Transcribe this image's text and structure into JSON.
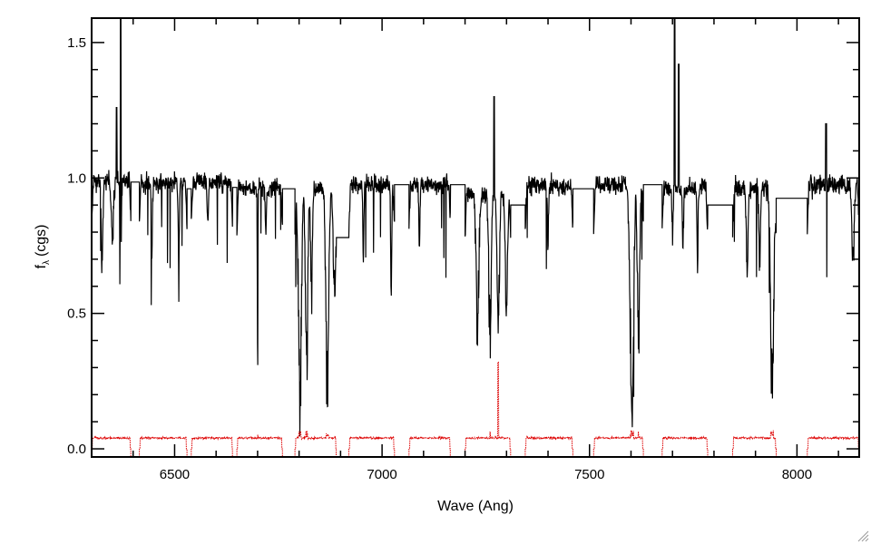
{
  "chart_data": {
    "type": "line",
    "xlabel": "Wave (Ang)",
    "ylabel_main": "f",
    "ylabel_sub": "λ",
    "ylabel_unit": "(cgs)",
    "xlim": [
      6300,
      8150
    ],
    "ylim": [
      -0.03,
      1.59
    ],
    "x_ticks": [
      6500,
      7000,
      7500,
      8000
    ],
    "y_ticks": [
      0.0,
      0.5,
      1.0,
      1.5
    ],
    "x_tick_labels": [
      "6500",
      "7000",
      "7500",
      "8000"
    ],
    "y_tick_labels": [
      "0.0",
      "0.5",
      "1.0",
      "1.5"
    ],
    "grid": false,
    "colors": {
      "flux": "#000000",
      "error": "#dd0000",
      "axes": "#000000"
    },
    "orders": [
      {
        "start": 6300,
        "end": 6395,
        "level": 0.99
      },
      {
        "start": 6415,
        "end": 6530,
        "level": 0.98
      },
      {
        "start": 6540,
        "end": 6640,
        "level": 0.985
      },
      {
        "start": 6650,
        "end": 6760,
        "level": 0.965
      },
      {
        "start": 6790,
        "end": 6890,
        "level": 0.96
      },
      {
        "start": 6920,
        "end": 7030,
        "level": 0.975
      },
      {
        "start": 7065,
        "end": 7165,
        "level": 0.975
      },
      {
        "start": 7200,
        "end": 7310,
        "level": 0.945
      },
      {
        "start": 7345,
        "end": 7460,
        "level": 0.97
      },
      {
        "start": 7510,
        "end": 7630,
        "level": 0.975
      },
      {
        "start": 7675,
        "end": 7785,
        "level": 0.965
      },
      {
        "start": 7845,
        "end": 7950,
        "level": 0.96
      },
      {
        "start": 8025,
        "end": 8150,
        "level": 0.975
      }
    ],
    "gap_levels": [
      0.985,
      0.96,
      0.965,
      0.96,
      0.78,
      0.975,
      0.975,
      0.9,
      0.96,
      0.975,
      0.9,
      0.925,
      0.565
    ],
    "absorption_features": [
      {
        "x": 6325,
        "depth": 0.35,
        "width": 3
      },
      {
        "x": 6350,
        "depth": 0.25,
        "width": 4
      },
      {
        "x": 6370,
        "depth": 0.4,
        "width": 2
      },
      {
        "x": 6445,
        "depth": 0.3,
        "width": 2
      },
      {
        "x": 6510,
        "depth": 0.3,
        "width": 2
      },
      {
        "x": 6580,
        "depth": 0.25,
        "width": 2
      },
      {
        "x": 6700,
        "depth": 0.95,
        "width": 1
      },
      {
        "x": 6720,
        "depth": 0.2,
        "width": 2
      },
      {
        "x": 6802,
        "depth": 0.95,
        "width": 5
      },
      {
        "x": 6818,
        "depth": 0.85,
        "width": 4
      },
      {
        "x": 6830,
        "depth": 0.5,
        "width": 3
      },
      {
        "x": 6868,
        "depth": 0.85,
        "width": 5
      },
      {
        "x": 6885,
        "depth": 0.45,
        "width": 4
      },
      {
        "x": 6955,
        "depth": 0.3,
        "width": 2
      },
      {
        "x": 7022,
        "depth": 0.45,
        "width": 2
      },
      {
        "x": 7090,
        "depth": 0.3,
        "width": 2
      },
      {
        "x": 7230,
        "depth": 0.6,
        "width": 5
      },
      {
        "x": 7260,
        "depth": 0.65,
        "width": 4
      },
      {
        "x": 7280,
        "depth": 0.6,
        "width": 4
      },
      {
        "x": 7300,
        "depth": 0.5,
        "width": 4
      },
      {
        "x": 7400,
        "depth": 0.25,
        "width": 2
      },
      {
        "x": 7465,
        "depth": 0.3,
        "width": 2
      },
      {
        "x": 7602,
        "depth": 0.97,
        "width": 6
      },
      {
        "x": 7618,
        "depth": 0.7,
        "width": 4
      },
      {
        "x": 7700,
        "depth": 0.25,
        "width": 2
      },
      {
        "x": 7725,
        "depth": 0.3,
        "width": 2
      },
      {
        "x": 7760,
        "depth": 0.35,
        "width": 2
      },
      {
        "x": 7880,
        "depth": 0.35,
        "width": 3
      },
      {
        "x": 7910,
        "depth": 0.3,
        "width": 3
      },
      {
        "x": 7940,
        "depth": 0.95,
        "width": 5
      },
      {
        "x": 8135,
        "depth": 0.35,
        "width": 4
      }
    ],
    "emission_spikes": [
      {
        "x": 6370,
        "peak": 1.59
      },
      {
        "x": 6360,
        "peak": 1.26
      },
      {
        "x": 7270,
        "peak": 1.3
      },
      {
        "x": 7705,
        "peak": 1.59
      },
      {
        "x": 7715,
        "peak": 1.42
      },
      {
        "x": 7815,
        "peak": 1.2
      },
      {
        "x": 8070,
        "peak": 1.2
      }
    ],
    "noise_amplitude": 0.06,
    "error_level": 0.04,
    "error_spike": {
      "x": 7280,
      "peak": 0.32
    }
  }
}
